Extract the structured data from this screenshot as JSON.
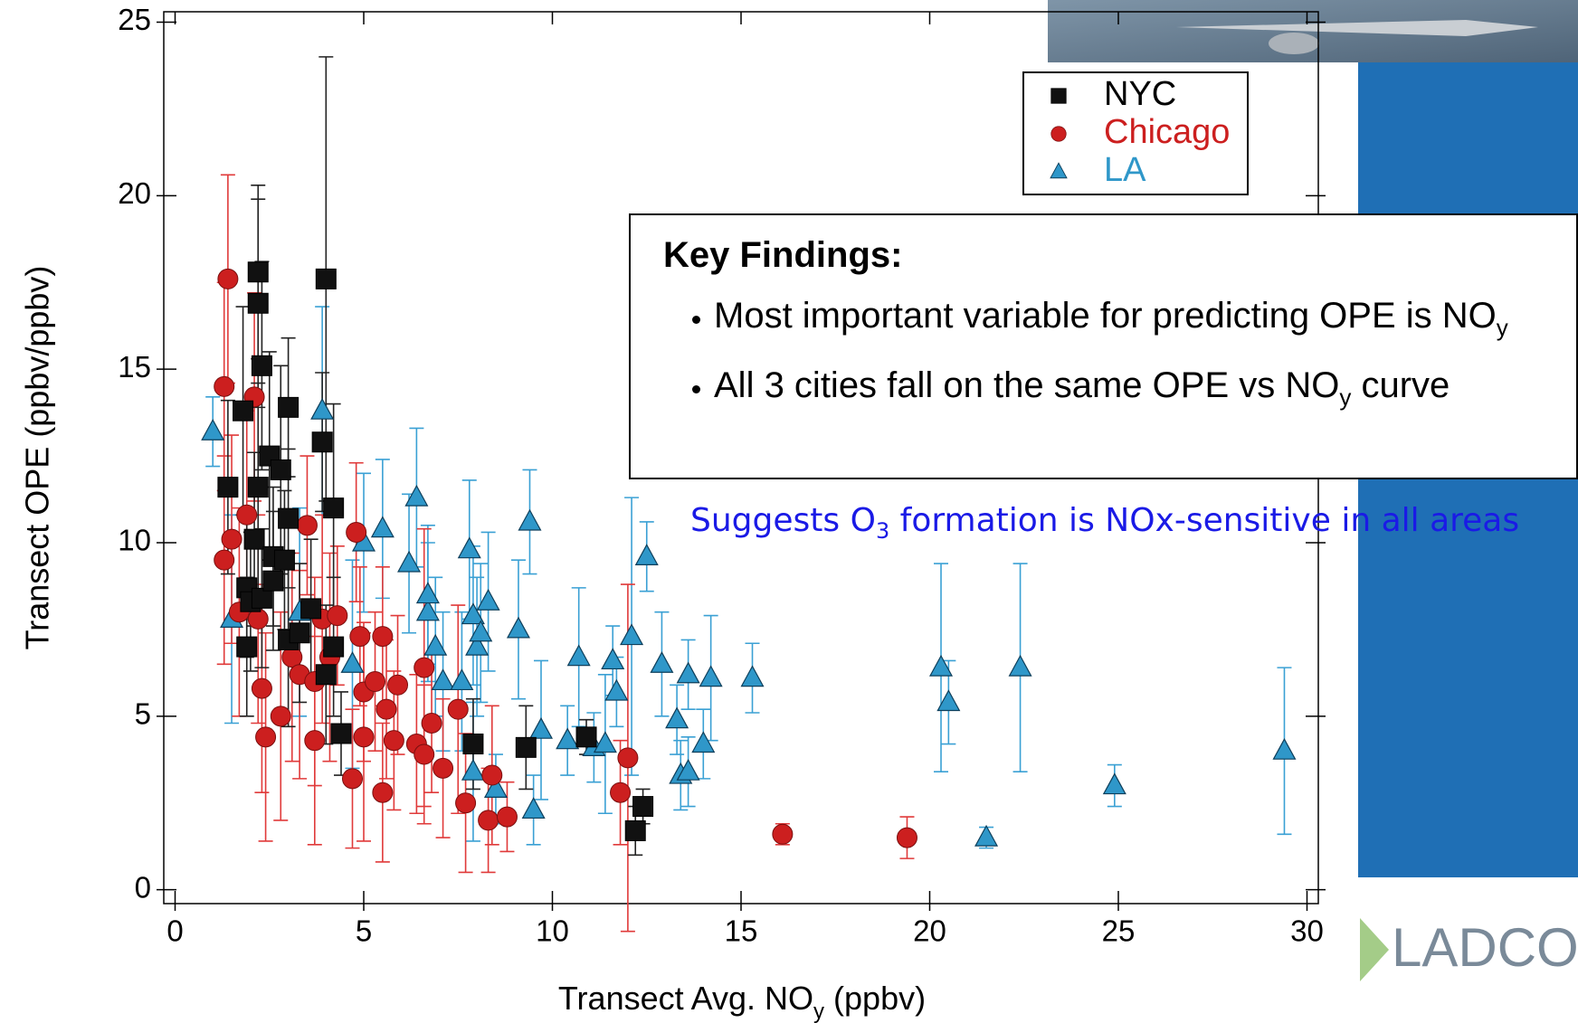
{
  "chart_data": {
    "type": "scatter",
    "x_label": [
      "Transect Avg. NO",
      "y",
      " (ppbv)"
    ],
    "y_label": "Transect OPE (ppbv/ppbv)",
    "xlim": [
      -0.3,
      30.3
    ],
    "ylim": [
      -0.4,
      25.3
    ],
    "xticks": [
      0,
      5,
      10,
      15,
      20,
      25,
      30
    ],
    "yticks": [
      0,
      5,
      10,
      15,
      20,
      25
    ],
    "series": [
      {
        "name": "NYC",
        "color": "#111111",
        "marker": "square",
        "x": [
          1.4,
          1.8,
          2.2,
          2.2,
          2.3,
          2.2,
          2.5,
          2.8,
          3.0,
          2.1,
          1.9,
          2.0,
          1.9,
          2.3,
          2.6,
          2.6,
          3.0,
          2.9,
          3.0,
          3.3,
          3.6,
          4.0,
          3.9,
          4.2,
          4.2,
          4.0,
          4.4,
          7.9,
          9.3,
          10.9,
          12.2,
          12.4
        ],
        "values": [
          11.6,
          13.8,
          17.8,
          16.9,
          15.1,
          11.6,
          12.5,
          12.1,
          13.9,
          10.1,
          8.7,
          8.3,
          7.0,
          8.4,
          9.6,
          8.9,
          10.7,
          9.5,
          7.2,
          7.4,
          8.1,
          17.6,
          12.9,
          11.0,
          7.0,
          6.2,
          4.5,
          4.2,
          4.1,
          4.4,
          1.7,
          2.4
        ],
        "errors": [
          2.5,
          3,
          2.5,
          3,
          3,
          3,
          3,
          3,
          2,
          2.5,
          2,
          2,
          2,
          2,
          2,
          2,
          2,
          2,
          2.5,
          2,
          2,
          6.4,
          2,
          3,
          2,
          2,
          1.2,
          1.3,
          1.2,
          0.5,
          0.7,
          0.5
        ]
      },
      {
        "name": "Chicago",
        "color": "#cc1f1f",
        "marker": "circle",
        "x": [
          1.4,
          1.3,
          2.1,
          1.9,
          1.3,
          1.5,
          1.7,
          2.2,
          2.3,
          2.4,
          2.8,
          3.1,
          3.3,
          3.7,
          3.7,
          3.5,
          3.9,
          4.1,
          4.3,
          4.7,
          4.8,
          4.9,
          5.0,
          5.0,
          5.3,
          5.5,
          5.5,
          5.6,
          5.8,
          5.9,
          6.4,
          6.6,
          6.6,
          6.8,
          7.1,
          7.5,
          7.7,
          8.3,
          8.4,
          8.8,
          11.8,
          12.0,
          16.1,
          19.4
        ],
        "values": [
          17.6,
          14.5,
          14.2,
          10.8,
          9.5,
          10.1,
          8.0,
          7.8,
          5.8,
          4.4,
          5.0,
          6.7,
          6.2,
          6.0,
          4.3,
          10.5,
          7.8,
          6.7,
          7.9,
          3.2,
          10.3,
          7.3,
          5.7,
          4.4,
          6.0,
          7.3,
          2.8,
          5.2,
          4.3,
          5.9,
          4.2,
          3.9,
          6.4,
          4.8,
          3.5,
          5.2,
          2.5,
          2.0,
          3.3,
          2.1,
          2.8,
          3.8,
          1.6,
          1.5
        ],
        "errors": [
          3,
          3,
          3,
          3,
          3,
          3,
          3,
          3,
          3,
          3,
          3,
          3,
          3,
          3,
          3,
          2,
          3,
          3,
          2,
          2,
          2,
          2,
          2,
          3,
          2,
          2,
          2,
          2,
          2,
          2,
          2,
          2,
          4,
          2,
          2,
          3,
          2,
          1.5,
          2,
          1,
          1.5,
          5,
          0.3,
          0.6
        ]
      },
      {
        "name": "LA",
        "color": "#2f97c9",
        "marker": "triangle",
        "x": [
          1.0,
          1.5,
          3.9,
          3.3,
          4.7,
          5.0,
          5.5,
          6.2,
          6.4,
          6.7,
          6.7,
          6.9,
          7.1,
          7.6,
          7.8,
          7.9,
          8.0,
          8.1,
          8.3,
          7.9,
          8.5,
          9.1,
          9.4,
          9.5,
          9.7,
          10.4,
          10.7,
          11.1,
          11.4,
          11.6,
          11.7,
          12.1,
          12.5,
          12.9,
          13.3,
          13.4,
          13.6,
          13.6,
          14.0,
          14.2,
          15.3,
          20.3,
          20.5,
          21.5,
          22.4,
          24.9,
          29.4
        ],
        "values": [
          13.2,
          7.8,
          13.8,
          8.0,
          6.5,
          10.0,
          10.4,
          9.4,
          11.3,
          8.0,
          8.5,
          7.0,
          6.0,
          6.0,
          9.8,
          7.9,
          7.0,
          7.4,
          8.3,
          3.4,
          2.9,
          7.5,
          10.6,
          2.3,
          4.6,
          4.3,
          6.7,
          4.1,
          4.2,
          6.6,
          5.7,
          7.3,
          9.6,
          6.5,
          4.9,
          3.3,
          6.2,
          3.4,
          4.2,
          6.1,
          6.1,
          6.4,
          5.4,
          1.5,
          6.4,
          3.0,
          4.0
        ],
        "errors": [
          1,
          3,
          3,
          3,
          3,
          2,
          2,
          2,
          2,
          2,
          2,
          2,
          2,
          2,
          2,
          2,
          2,
          2,
          2,
          2,
          1,
          2,
          1.5,
          1,
          2,
          1,
          2,
          1,
          2,
          1,
          1,
          4,
          1,
          1.5,
          1,
          1,
          1,
          1,
          1,
          1.8,
          1,
          3,
          1.2,
          0.3,
          3,
          0.6,
          2.4
        ]
      }
    ]
  },
  "key_findings": {
    "title": "Key Findings:",
    "items": [
      [
        "Most important variable for predicting OPE is NO",
        "y"
      ],
      [
        "All 3 cities fall on the same OPE vs NO",
        "y",
        " curve"
      ]
    ]
  },
  "note": [
    "Suggests O",
    "3",
    " formation is NOx-sensitive in all areas"
  ],
  "logo": "LADCO"
}
